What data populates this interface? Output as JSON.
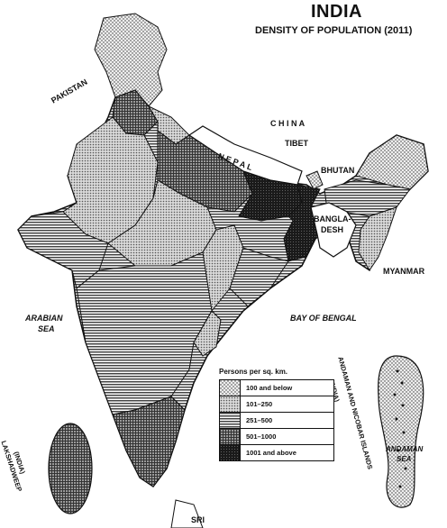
{
  "title": "INDIA",
  "subtitle": "DENSITY OF POPULATION (2011)",
  "labels": {
    "china": "C H I N A",
    "tibet": "TIBET",
    "pakistan": "PAKISTAN",
    "nepal": "N E P A L",
    "bhutan": "BHUTAN",
    "bangladesh_1": "BANGLA-",
    "bangladesh_2": "DESH",
    "myanmar": "MYANMAR",
    "arabian_sea_1": "ARABIAN",
    "arabian_sea_2": "SEA",
    "bay_of_bengal": "BAY OF BENGAL",
    "andaman_nicobar": "ANDAMAN AND NICOBAR ISLANDS",
    "andaman_nicobar_india": "(INDIA)",
    "andaman_sea_1": "ANDAMAN",
    "andaman_sea_2": "SEA",
    "lakshadweep": "LAKSHADWEEP",
    "lakshadweep_india": "(INDIA)",
    "sri": "SRI"
  },
  "legend": {
    "title": "Persons per sq. km.",
    "items": [
      {
        "label": "100 and below",
        "pattern": "dots"
      },
      {
        "label": "101–250",
        "pattern": "light"
      },
      {
        "label": "251–500",
        "pattern": "hlines"
      },
      {
        "label": "501–1000",
        "pattern": "grid"
      },
      {
        "label": "1001 and above",
        "pattern": "dark"
      }
    ]
  },
  "colors": {
    "ink": "#111111",
    "dots_bg": "#eeeeee",
    "light_bg": "#dddddd",
    "hlines_bg": "#ffffff",
    "grid_bg": "#bbbbbb",
    "dark_bg": "#1a1a1a"
  }
}
